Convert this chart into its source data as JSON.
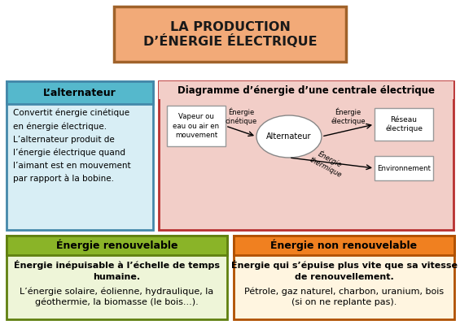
{
  "title_line1": "LA PRODUCTION",
  "title_line2": "D’ÉNERGIE ÉLECTRIQUE",
  "title_bg": "#f2aa78",
  "title_border": "#a0622a",
  "title_fontsize": 11.5,
  "alt_title": "L’alternateur",
  "alt_title_bg": "#55b8cc",
  "alt_border": "#4488aa",
  "alt_text": "Convertit énergie cinétique\nen énergie électrique.\nL’alternateur produit de\nl’énergie électrique quand\nl’aimant est en mouvement\npar rapport à la bobine.",
  "alt_bg": "#d8eef5",
  "alt_text_fontsize": 7.5,
  "diag_title": "Diagramme d’énergie d’une centrale électrique",
  "diag_bg": "#f2cec8",
  "diag_border": "#b83030",
  "diag_title_fontsize": 8.5,
  "renew_title": "Énergie renouvelable",
  "renew_title_bg": "#8ab428",
  "renew_border": "#608010",
  "renew_bold_text": "Énergie inépuisable à l’échelle de temps\nhumaine.",
  "renew_normal_text": "L’énergie solaire, éolienne, hydraulique, la\ngéothermie, la biomasse (le bois...).",
  "renew_bg": "#eef5d8",
  "renew_text_fontsize": 8,
  "nonrenew_title": "Énergie non renouvelable",
  "nonrenew_title_bg": "#f08020",
  "nonrenew_border": "#b05000",
  "nonrenew_bold_text": "Énergie qui s’épuise plus vite que sa vitesse\nde renouvellement.",
  "nonrenew_normal_text": "Pétrole, gaz naturel, charbon, uranium, bois\n(si on ne replante pas).",
  "nonrenew_bg": "#fff5e0",
  "nonrenew_text_fontsize": 8,
  "box_bg": "#ffffff",
  "box_border": "#888888"
}
